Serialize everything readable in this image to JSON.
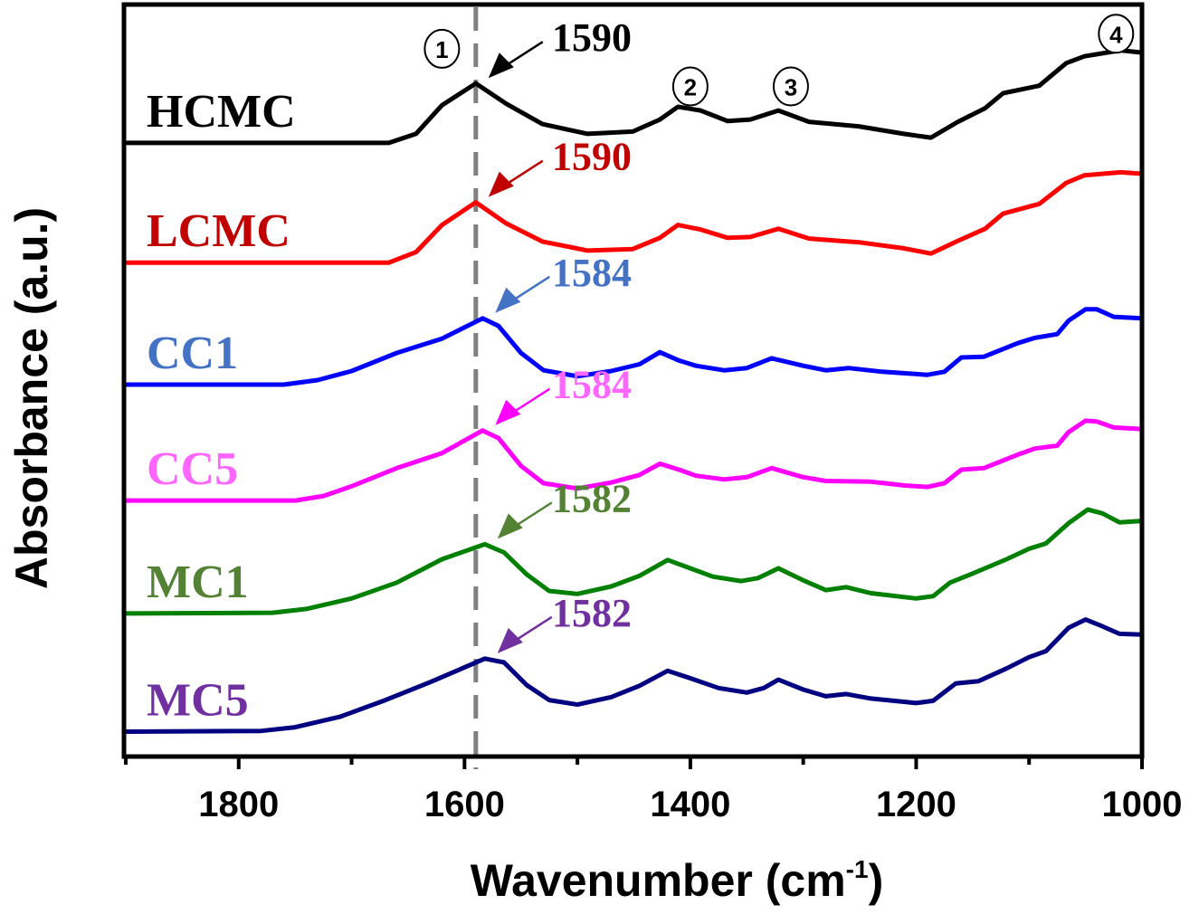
{
  "chart_data": {
    "type": "line",
    "title": "",
    "xlabel": "Wavenumber (cm",
    "xlabel_sup": "-1",
    "xlabel_close": ")",
    "ylabel": "Absorbance (a.u.)",
    "xlim": [
      1900,
      1000
    ],
    "x_reversed": true,
    "ylim": [
      0,
      100
    ],
    "y_ticks_shown": false,
    "grid": false,
    "legend": "inline labels at left of each trace",
    "x_ticks": [
      1800,
      1600,
      1400,
      1200,
      1000
    ],
    "x_minor_ticks": [
      1900,
      1700,
      1500,
      1300,
      1100
    ],
    "reference_line": {
      "x": 1590,
      "style": "dashed",
      "color": "#808080"
    },
    "band_markers": [
      {
        "label": "①",
        "x": 1620,
        "y": 94
      },
      {
        "label": "②",
        "x": 1400,
        "y": 89
      },
      {
        "label": "③",
        "x": 1311,
        "y": 89
      },
      {
        "label": "④",
        "x": 1023,
        "y": 96
      }
    ],
    "series": [
      {
        "name": "HCMC",
        "color": "#000000",
        "label_color": "#000000",
        "peak_label": "1590",
        "peak_x": 1590,
        "arrow_color": "#000000",
        "points": [
          [
            1900,
            81.5
          ],
          [
            1667,
            81.5
          ],
          [
            1643,
            82.7
          ],
          [
            1620,
            86.5
          ],
          [
            1590,
            89.4
          ],
          [
            1563,
            86.7
          ],
          [
            1531,
            84.0
          ],
          [
            1491,
            82.7
          ],
          [
            1451,
            83.0
          ],
          [
            1427,
            84.6
          ],
          [
            1411,
            86.3
          ],
          [
            1391,
            85.8
          ],
          [
            1367,
            84.4
          ],
          [
            1347,
            84.6
          ],
          [
            1322,
            85.8
          ],
          [
            1295,
            84.3
          ],
          [
            1251,
            83.7
          ],
          [
            1211,
            82.7
          ],
          [
            1187,
            82.2
          ],
          [
            1163,
            84.3
          ],
          [
            1139,
            86.1
          ],
          [
            1123,
            88.1
          ],
          [
            1091,
            89.1
          ],
          [
            1067,
            92.1
          ],
          [
            1051,
            93.0
          ],
          [
            1019,
            93.8
          ],
          [
            1000,
            93.5
          ]
        ]
      },
      {
        "name": "LCMC",
        "color": "#ff0000",
        "label_color": "#c00000",
        "peak_label": "1590",
        "peak_x": 1590,
        "arrow_color": "#c00000",
        "points": [
          [
            1900,
            65.6
          ],
          [
            1667,
            65.6
          ],
          [
            1643,
            67.0
          ],
          [
            1620,
            70.6
          ],
          [
            1590,
            73.6
          ],
          [
            1563,
            70.8
          ],
          [
            1531,
            68.4
          ],
          [
            1491,
            67.2
          ],
          [
            1451,
            67.4
          ],
          [
            1427,
            68.9
          ],
          [
            1411,
            70.6
          ],
          [
            1391,
            70.0
          ],
          [
            1367,
            68.9
          ],
          [
            1347,
            69.0
          ],
          [
            1322,
            70.1
          ],
          [
            1295,
            68.8
          ],
          [
            1251,
            68.3
          ],
          [
            1211,
            67.5
          ],
          [
            1187,
            66.8
          ],
          [
            1163,
            68.5
          ],
          [
            1139,
            70.1
          ],
          [
            1123,
            72.1
          ],
          [
            1091,
            73.4
          ],
          [
            1067,
            76.2
          ],
          [
            1051,
            77.2
          ],
          [
            1019,
            77.6
          ],
          [
            1000,
            77.4
          ]
        ]
      },
      {
        "name": "CC1",
        "color": "#0000ff",
        "label_color": "#4472c4",
        "peak_label": "1584",
        "peak_x": 1584,
        "arrow_color": "#4472c4",
        "points": [
          [
            1900,
            49.4
          ],
          [
            1760,
            49.4
          ],
          [
            1730,
            50.0
          ],
          [
            1700,
            51.2
          ],
          [
            1660,
            53.6
          ],
          [
            1620,
            55.5
          ],
          [
            1584,
            58.2
          ],
          [
            1570,
            57.2
          ],
          [
            1550,
            53.6
          ],
          [
            1530,
            51.3
          ],
          [
            1500,
            50.5
          ],
          [
            1470,
            51.2
          ],
          [
            1445,
            52.1
          ],
          [
            1427,
            53.7
          ],
          [
            1410,
            52.6
          ],
          [
            1395,
            51.9
          ],
          [
            1370,
            51.3
          ],
          [
            1350,
            51.6
          ],
          [
            1328,
            52.9
          ],
          [
            1300,
            51.9
          ],
          [
            1280,
            51.3
          ],
          [
            1260,
            51.6
          ],
          [
            1230,
            51.1
          ],
          [
            1190,
            50.7
          ],
          [
            1175,
            51.1
          ],
          [
            1160,
            53.0
          ],
          [
            1140,
            53.1
          ],
          [
            1110,
            54.9
          ],
          [
            1095,
            55.6
          ],
          [
            1075,
            56.1
          ],
          [
            1065,
            57.9
          ],
          [
            1050,
            59.4
          ],
          [
            1040,
            59.4
          ],
          [
            1025,
            58.4
          ],
          [
            1000,
            58.2
          ]
        ]
      },
      {
        "name": "CC5",
        "color": "#ff00ff",
        "label_color": "#ff66ff",
        "peak_label": "1584",
        "peak_x": 1584,
        "arrow_color": "#ff00ff",
        "points": [
          [
            1900,
            34.0
          ],
          [
            1750,
            34.0
          ],
          [
            1725,
            34.6
          ],
          [
            1700,
            35.9
          ],
          [
            1660,
            38.3
          ],
          [
            1620,
            40.3
          ],
          [
            1584,
            43.3
          ],
          [
            1570,
            42.3
          ],
          [
            1550,
            38.6
          ],
          [
            1530,
            36.3
          ],
          [
            1500,
            35.6
          ],
          [
            1470,
            36.4
          ],
          [
            1445,
            37.4
          ],
          [
            1427,
            38.9
          ],
          [
            1410,
            38.1
          ],
          [
            1395,
            37.3
          ],
          [
            1370,
            36.8
          ],
          [
            1350,
            37.1
          ],
          [
            1328,
            38.3
          ],
          [
            1300,
            37.1
          ],
          [
            1280,
            36.6
          ],
          [
            1240,
            36.5
          ],
          [
            1210,
            36.0
          ],
          [
            1190,
            35.8
          ],
          [
            1175,
            36.3
          ],
          [
            1160,
            38.1
          ],
          [
            1140,
            38.3
          ],
          [
            1110,
            40.1
          ],
          [
            1095,
            40.9
          ],
          [
            1075,
            41.3
          ],
          [
            1065,
            43.1
          ],
          [
            1050,
            44.6
          ],
          [
            1040,
            44.5
          ],
          [
            1025,
            43.7
          ],
          [
            1000,
            43.5
          ]
        ]
      },
      {
        "name": "MC1",
        "color": "#008000",
        "label_color": "#548235",
        "peak_label": "1582",
        "peak_x": 1582,
        "arrow_color": "#548235",
        "points": [
          [
            1900,
            19.0
          ],
          [
            1770,
            19.1
          ],
          [
            1740,
            19.6
          ],
          [
            1700,
            21.0
          ],
          [
            1660,
            23.1
          ],
          [
            1620,
            26.2
          ],
          [
            1582,
            28.2
          ],
          [
            1565,
            27.1
          ],
          [
            1545,
            24.2
          ],
          [
            1525,
            22.0
          ],
          [
            1500,
            21.6
          ],
          [
            1470,
            22.6
          ],
          [
            1445,
            24.0
          ],
          [
            1420,
            26.1
          ],
          [
            1400,
            25.0
          ],
          [
            1380,
            23.9
          ],
          [
            1355,
            23.3
          ],
          [
            1340,
            23.7
          ],
          [
            1322,
            25.0
          ],
          [
            1300,
            23.4
          ],
          [
            1280,
            22.1
          ],
          [
            1262,
            22.5
          ],
          [
            1240,
            21.7
          ],
          [
            1200,
            21.0
          ],
          [
            1185,
            21.3
          ],
          [
            1170,
            23.1
          ],
          [
            1150,
            24.3
          ],
          [
            1120,
            26.2
          ],
          [
            1100,
            27.6
          ],
          [
            1085,
            28.3
          ],
          [
            1065,
            31.0
          ],
          [
            1048,
            32.8
          ],
          [
            1035,
            32.3
          ],
          [
            1020,
            31.1
          ],
          [
            1000,
            31.3
          ]
        ]
      },
      {
        "name": "MC5",
        "color": "#000080",
        "label_color": "#7030a0",
        "peak_label": "1582",
        "peak_x": 1582,
        "arrow_color": "#7030a0",
        "points": [
          [
            1900,
            3.3
          ],
          [
            1780,
            3.4
          ],
          [
            1750,
            3.9
          ],
          [
            1710,
            5.3
          ],
          [
            1670,
            7.5
          ],
          [
            1630,
            9.9
          ],
          [
            1582,
            13.0
          ],
          [
            1565,
            12.5
          ],
          [
            1545,
            9.5
          ],
          [
            1525,
            7.5
          ],
          [
            1500,
            6.9
          ],
          [
            1470,
            7.9
          ],
          [
            1445,
            9.4
          ],
          [
            1420,
            11.4
          ],
          [
            1400,
            10.4
          ],
          [
            1375,
            9.1
          ],
          [
            1350,
            8.5
          ],
          [
            1335,
            9.1
          ],
          [
            1322,
            10.2
          ],
          [
            1300,
            8.9
          ],
          [
            1280,
            8.0
          ],
          [
            1262,
            8.3
          ],
          [
            1240,
            7.7
          ],
          [
            1200,
            7.1
          ],
          [
            1185,
            7.4
          ],
          [
            1165,
            9.7
          ],
          [
            1145,
            10.0
          ],
          [
            1120,
            11.7
          ],
          [
            1100,
            13.2
          ],
          [
            1085,
            14.0
          ],
          [
            1065,
            17.1
          ],
          [
            1050,
            18.2
          ],
          [
            1035,
            17.3
          ],
          [
            1020,
            16.3
          ],
          [
            1000,
            16.2
          ]
        ]
      }
    ]
  }
}
